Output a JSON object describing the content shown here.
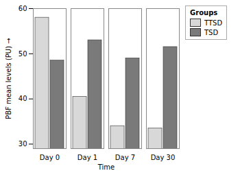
{
  "chart_data": {
    "type": "bar",
    "categories": [
      "Day 0",
      "Day 1",
      "Day 7",
      "Day 30"
    ],
    "series": [
      {
        "name": "TTSD",
        "color": "#d8d8d8",
        "values": [
          58.0,
          40.5,
          34.0,
          33.5
        ]
      },
      {
        "name": "TSD",
        "color": "#7a7a7a",
        "values": [
          48.5,
          53.0,
          49.0,
          51.5
        ]
      }
    ],
    "xlabel": "Time",
    "ylabel": "PBF mean levels (PU)",
    "ylim": [
      29,
      60
    ],
    "yticks": [
      30,
      40,
      50,
      60
    ],
    "grid": false,
    "legend": "right",
    "legend_title": "Groups"
  }
}
